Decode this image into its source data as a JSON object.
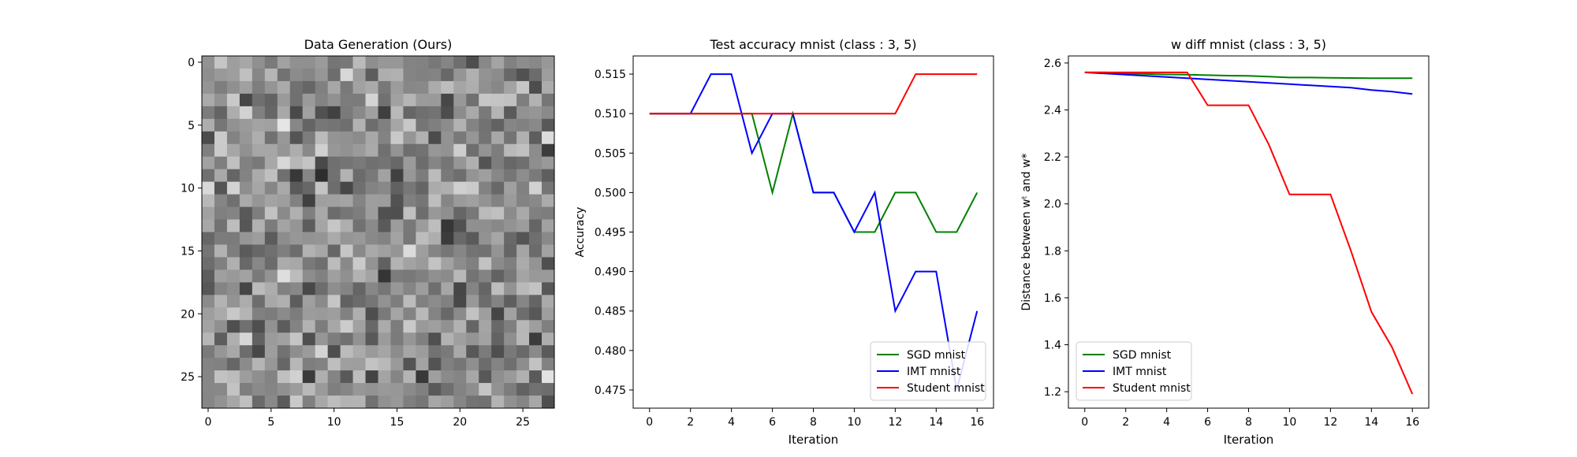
{
  "chart_data": [
    {
      "type": "heatmap",
      "title": "Data Generation (Ours)",
      "xticks": [
        0,
        5,
        10,
        15,
        20,
        25
      ],
      "yticks": [
        0,
        5,
        10,
        15,
        20,
        25
      ],
      "shape": [
        28,
        28
      ],
      "colormap": "gray",
      "grid": false
    },
    {
      "type": "line",
      "title": "Test accuracy mnist (class : 3, 5)",
      "xlabel": "Iteration",
      "ylabel": "Accuracy",
      "xlim": [
        -0.8,
        16.8
      ],
      "ylim": [
        0.4727,
        0.5173
      ],
      "xticks": [
        0,
        2,
        4,
        6,
        8,
        10,
        12,
        14,
        16
      ],
      "yticks": [
        0.475,
        0.48,
        0.485,
        0.49,
        0.495,
        0.5,
        0.505,
        0.51,
        0.515
      ],
      "ytick_labels": [
        "0.475",
        "0.480",
        "0.485",
        "0.490",
        "0.495",
        "0.500",
        "0.505",
        "0.510",
        "0.515"
      ],
      "x": [
        0,
        1,
        2,
        3,
        4,
        5,
        6,
        7,
        8,
        9,
        10,
        11,
        12,
        13,
        14,
        15,
        16
      ],
      "series": [
        {
          "name": "SGD mnist",
          "color": "#008000",
          "values": [
            0.51,
            0.51,
            0.51,
            0.51,
            0.51,
            0.51,
            0.5,
            0.51,
            0.5,
            0.5,
            0.495,
            0.495,
            0.5,
            0.5,
            0.495,
            0.495,
            0.5
          ]
        },
        {
          "name": "IMT mnist",
          "color": "#0000ff",
          "values": [
            0.51,
            0.51,
            0.51,
            0.515,
            0.515,
            0.505,
            0.51,
            0.51,
            0.5,
            0.5,
            0.495,
            0.5,
            0.485,
            0.49,
            0.49,
            0.475,
            0.485
          ]
        },
        {
          "name": "Student mnist",
          "color": "#ff0000",
          "values": [
            0.51,
            0.51,
            0.51,
            0.51,
            0.51,
            0.51,
            0.51,
            0.51,
            0.51,
            0.51,
            0.51,
            0.51,
            0.51,
            0.515,
            0.515,
            0.515,
            0.515
          ]
        }
      ],
      "legend": "lower right",
      "grid": false
    },
    {
      "type": "line",
      "title": "w diff mnist (class : 3, 5)",
      "xlabel": "Iteration",
      "ylabel": "Distance between wᵗ and w*",
      "xlim": [
        -0.8,
        16.8
      ],
      "ylim": [
        1.13,
        2.63
      ],
      "xticks": [
        0,
        2,
        4,
        6,
        8,
        10,
        12,
        14,
        16
      ],
      "yticks": [
        1.2,
        1.4,
        1.6,
        1.8,
        2.0,
        2.2,
        2.4,
        2.6
      ],
      "ytick_labels": [
        "1.2",
        "1.4",
        "1.6",
        "1.8",
        "2.0",
        "2.2",
        "2.4",
        "2.6"
      ],
      "x": [
        0,
        1,
        2,
        3,
        4,
        5,
        6,
        7,
        8,
        9,
        10,
        11,
        12,
        13,
        14,
        15,
        16
      ],
      "series": [
        {
          "name": "SGD mnist",
          "color": "#008000",
          "values": [
            2.56,
            2.56,
            2.555,
            2.553,
            2.551,
            2.55,
            2.548,
            2.546,
            2.545,
            2.542,
            2.538,
            2.538,
            2.537,
            2.536,
            2.535,
            2.535,
            2.535
          ]
        },
        {
          "name": "IMT mnist",
          "color": "#0000ff",
          "values": [
            2.56,
            2.555,
            2.55,
            2.545,
            2.54,
            2.535,
            2.53,
            2.525,
            2.52,
            2.515,
            2.51,
            2.505,
            2.5,
            2.495,
            2.485,
            2.478,
            2.468
          ]
        },
        {
          "name": "Student mnist",
          "color": "#ff0000",
          "values": [
            2.56,
            2.56,
            2.56,
            2.56,
            2.56,
            2.56,
            2.42,
            2.42,
            2.42,
            2.25,
            2.04,
            2.04,
            2.04,
            1.8,
            1.54,
            1.39,
            1.19
          ]
        }
      ],
      "legend": "lower left",
      "grid": false
    }
  ]
}
